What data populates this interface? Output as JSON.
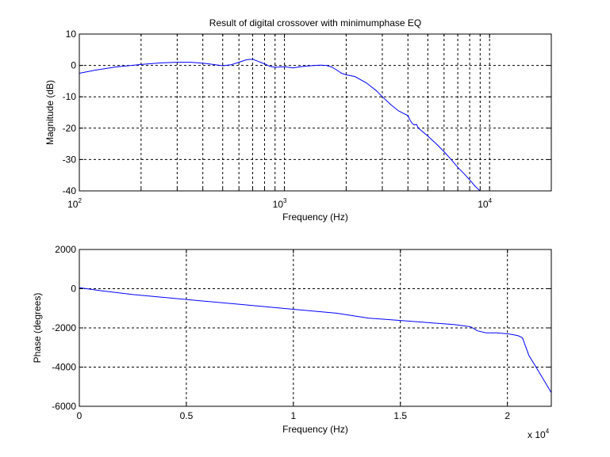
{
  "figure": {
    "background": "#ffffff",
    "line_color": "#0000ff",
    "axis_color": "#000000",
    "grid_style": "dashed"
  },
  "chart_data": [
    {
      "type": "line",
      "title": "Result of digital crossover with minimumphase EQ",
      "xlabel": "Frequency (Hz)",
      "ylabel": "Magnitude (dB)",
      "xscale": "log",
      "xlim": [
        100,
        20000
      ],
      "ylim": [
        -40,
        10
      ],
      "grid": true,
      "xtick_labels": [
        {
          "value": 100,
          "base": "10",
          "exp": "2"
        },
        {
          "value": 1000,
          "base": "10",
          "exp": "3"
        },
        {
          "value": 10000,
          "base": "10",
          "exp": "4"
        }
      ],
      "ytick_labels": [
        "10",
        "0",
        "-10",
        "-20",
        "-30",
        "-40"
      ],
      "yticks": [
        10,
        0,
        -10,
        -20,
        -30,
        -40
      ],
      "series": [
        {
          "color": "#0000ff",
          "x": [
            100,
            120,
            150,
            200,
            250,
            300,
            350,
            400,
            450,
            500,
            550,
            600,
            650,
            700,
            750,
            800,
            850,
            900,
            1000,
            1100,
            1200,
            1300,
            1400,
            1500,
            1600,
            1700,
            1800,
            1900,
            2000,
            2200,
            2500,
            2800,
            3000,
            3300,
            3600,
            4000,
            4100,
            4200,
            4300,
            4400,
            4500,
            5000,
            5500,
            6000,
            6500,
            7000,
            7500,
            8000,
            8500,
            9000
          ],
          "y": [
            -2.5,
            -1.5,
            -0.5,
            0.3,
            0.8,
            1.0,
            1.0,
            0.7,
            0.3,
            -0.1,
            0.2,
            1.0,
            1.8,
            2.0,
            1.2,
            0.5,
            -0.3,
            -0.6,
            -0.4,
            -0.8,
            -0.4,
            -0.2,
            0.0,
            0.1,
            0.0,
            -0.5,
            -1.5,
            -2.5,
            -3.0,
            -3.5,
            -5.5,
            -8.0,
            -10.0,
            -12.5,
            -14.5,
            -16.0,
            -17.5,
            -18.5,
            -19.0,
            -18.8,
            -20.0,
            -22.5,
            -25.0,
            -27.5,
            -30.0,
            -32.5,
            -34.5,
            -36.5,
            -38.5,
            -40.0
          ]
        }
      ]
    },
    {
      "type": "line",
      "title": "",
      "xlabel": "Frequency (Hz)",
      "ylabel": "Phase (degrees)",
      "xscale": "linear",
      "xlim": [
        0,
        22050
      ],
      "ylim": [
        -6000,
        2000
      ],
      "grid": true,
      "xticks": [
        0,
        5000,
        10000,
        15000,
        20000
      ],
      "xtick_labels": [
        "0",
        "0.5",
        "1",
        "1.5",
        "2"
      ],
      "x_multiplier": {
        "base": "x 10",
        "exp": "4"
      },
      "yticks": [
        2000,
        0,
        -2000,
        -4000,
        -6000
      ],
      "ytick_labels": [
        "2000",
        "0",
        "-2000",
        "-4000",
        "-6000"
      ],
      "series": [
        {
          "color": "#0000ff",
          "x": [
            0,
            1000,
            2500,
            5000,
            7500,
            10000,
            12000,
            13500,
            15000,
            16500,
            17500,
            18000,
            18300,
            18600,
            19000,
            19500,
            20000,
            20300,
            20500,
            20700,
            21000,
            21500,
            22050
          ],
          "y": [
            50,
            -100,
            -300,
            -550,
            -800,
            -1050,
            -1250,
            -1500,
            -1620,
            -1750,
            -1830,
            -1900,
            -1950,
            -2150,
            -2250,
            -2250,
            -2300,
            -2350,
            -2400,
            -2500,
            -3400,
            -4300,
            -5300
          ]
        }
      ]
    }
  ]
}
